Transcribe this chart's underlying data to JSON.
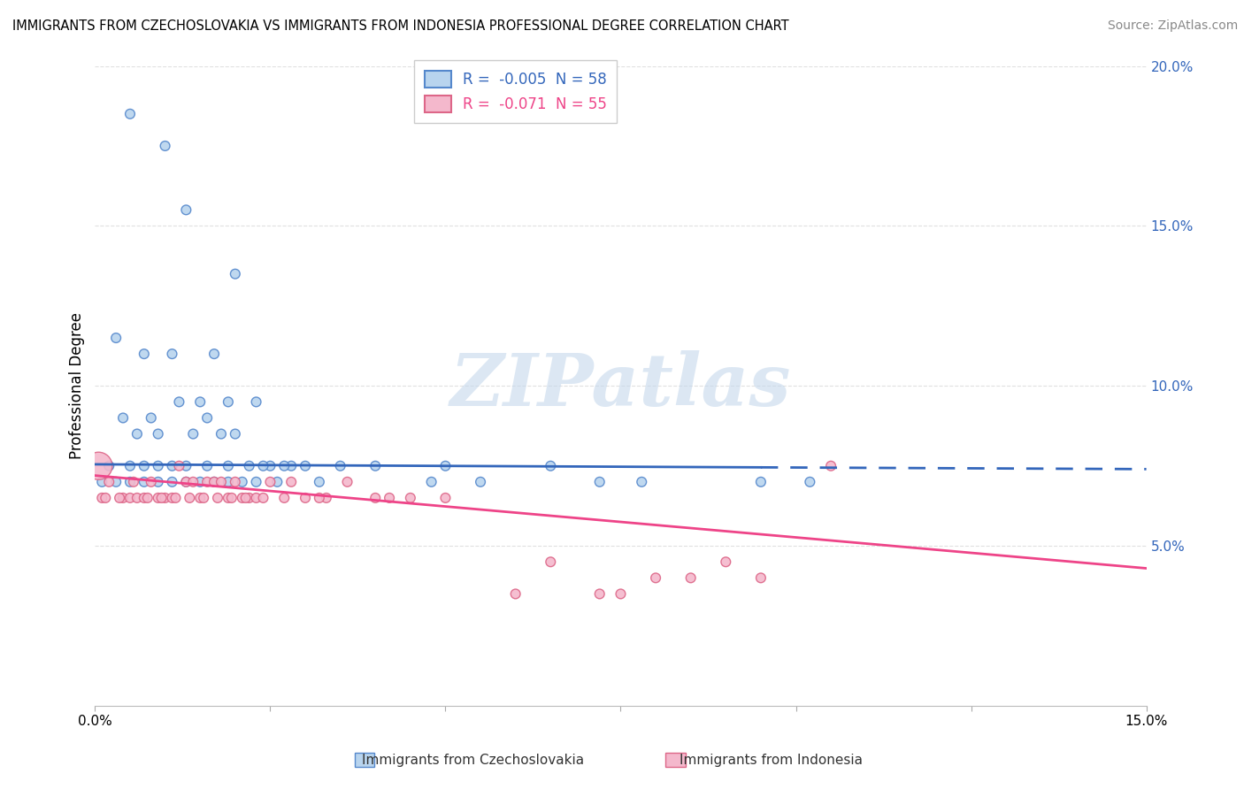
{
  "title": "IMMIGRANTS FROM CZECHOSLOVAKIA VS IMMIGRANTS FROM INDONESIA PROFESSIONAL DEGREE CORRELATION CHART",
  "source": "Source: ZipAtlas.com",
  "ylabel": "Professional Degree",
  "xlim": [
    0.0,
    15.0
  ],
  "ylim": [
    0.0,
    20.0
  ],
  "ytick_vals": [
    5.0,
    10.0,
    15.0,
    20.0
  ],
  "xtick_vals": [
    0.0,
    2.5,
    5.0,
    7.5,
    10.0,
    12.5,
    15.0
  ],
  "legend_r1": "R =  -0.005  N = 58",
  "legend_r2": "R =  -0.071  N = 55",
  "series1_color": "#b8d4ee",
  "series1_edge": "#5588cc",
  "series2_color": "#f4b8cc",
  "series2_edge": "#dd6688",
  "trend1_color": "#3366bb",
  "trend2_color": "#ee4488",
  "watermark": "ZIPatlas",
  "watermark_color": "#c5d8ec",
  "background_color": "#ffffff",
  "grid_color": "#dddddd",
  "s1_x": [
    0.5,
    1.0,
    1.3,
    1.7,
    2.0,
    0.3,
    0.7,
    1.1,
    1.5,
    1.9,
    2.3,
    0.4,
    0.8,
    1.2,
    1.6,
    2.0,
    0.6,
    0.9,
    1.4,
    1.8,
    2.5,
    3.0,
    2.2,
    2.8,
    0.2,
    0.5,
    0.7,
    0.9,
    1.1,
    1.3,
    1.6,
    1.9,
    2.4,
    2.7,
    3.5,
    4.0,
    5.0,
    6.5,
    0.1,
    0.3,
    0.5,
    0.7,
    0.9,
    1.1,
    1.3,
    1.5,
    1.7,
    1.9,
    2.1,
    2.3,
    2.6,
    3.2,
    4.8,
    5.5,
    7.2,
    7.8,
    9.5,
    10.2
  ],
  "s1_y": [
    18.5,
    17.5,
    15.5,
    11.0,
    13.5,
    11.5,
    11.0,
    11.0,
    9.5,
    9.5,
    9.5,
    9.0,
    9.0,
    9.5,
    9.0,
    8.5,
    8.5,
    8.5,
    8.5,
    8.5,
    7.5,
    7.5,
    7.5,
    7.5,
    7.5,
    7.5,
    7.5,
    7.5,
    7.5,
    7.5,
    7.5,
    7.5,
    7.5,
    7.5,
    7.5,
    7.5,
    7.5,
    7.5,
    7.0,
    7.0,
    7.0,
    7.0,
    7.0,
    7.0,
    7.0,
    7.0,
    7.0,
    7.0,
    7.0,
    7.0,
    7.0,
    7.0,
    7.0,
    7.0,
    7.0,
    7.0,
    7.0,
    7.0
  ],
  "s1_sz": [
    60,
    60,
    60,
    60,
    60,
    60,
    60,
    60,
    60,
    60,
    60,
    60,
    60,
    60,
    60,
    60,
    60,
    60,
    60,
    60,
    60,
    60,
    60,
    60,
    60,
    60,
    60,
    60,
    60,
    60,
    60,
    60,
    60,
    60,
    60,
    60,
    60,
    60,
    60,
    60,
    60,
    60,
    60,
    60,
    60,
    60,
    60,
    60,
    60,
    60,
    60,
    60,
    60,
    60,
    60,
    60,
    60,
    60
  ],
  "s2_x": [
    0.05,
    0.1,
    0.2,
    0.4,
    0.5,
    0.6,
    0.7,
    0.8,
    0.9,
    1.0,
    1.1,
    1.2,
    1.3,
    1.4,
    1.5,
    1.6,
    1.7,
    1.8,
    1.9,
    2.0,
    2.1,
    2.2,
    2.3,
    2.5,
    2.8,
    3.0,
    3.3,
    3.6,
    4.0,
    4.5,
    6.5,
    7.2,
    8.5,
    9.0,
    10.5,
    0.15,
    0.35,
    0.55,
    0.75,
    0.95,
    1.15,
    1.35,
    1.55,
    1.75,
    1.95,
    2.15,
    2.4,
    2.7,
    3.2,
    4.2,
    5.0,
    6.0,
    7.5,
    8.0,
    9.5
  ],
  "s2_y": [
    7.5,
    6.5,
    7.0,
    6.5,
    6.5,
    6.5,
    6.5,
    7.0,
    6.5,
    6.5,
    6.5,
    7.5,
    7.0,
    7.0,
    6.5,
    7.0,
    7.0,
    7.0,
    6.5,
    7.0,
    6.5,
    6.5,
    6.5,
    7.0,
    7.0,
    6.5,
    6.5,
    7.0,
    6.5,
    6.5,
    4.5,
    3.5,
    4.0,
    4.5,
    7.5,
    6.5,
    6.5,
    7.0,
    6.5,
    6.5,
    6.5,
    6.5,
    6.5,
    6.5,
    6.5,
    6.5,
    6.5,
    6.5,
    6.5,
    6.5,
    6.5,
    3.5,
    3.5,
    4.0,
    4.0
  ],
  "s2_sz": [
    500,
    60,
    60,
    60,
    60,
    60,
    60,
    60,
    60,
    60,
    60,
    60,
    60,
    60,
    60,
    60,
    60,
    60,
    60,
    60,
    60,
    60,
    60,
    60,
    60,
    60,
    60,
    60,
    60,
    60,
    60,
    60,
    60,
    60,
    60,
    60,
    60,
    60,
    60,
    60,
    60,
    60,
    60,
    60,
    60,
    60,
    60,
    60,
    60,
    60,
    60,
    60,
    60,
    60,
    60
  ],
  "trend1_y0": 7.55,
  "trend1_y1": 7.4,
  "trend2_y0": 7.2,
  "trend2_y1": 4.3,
  "trend1_solid_end": 9.5,
  "ytick_color": "#3366bb",
  "xlabel_color_left": "#333333",
  "xlabel_color_right": "#3366bb"
}
